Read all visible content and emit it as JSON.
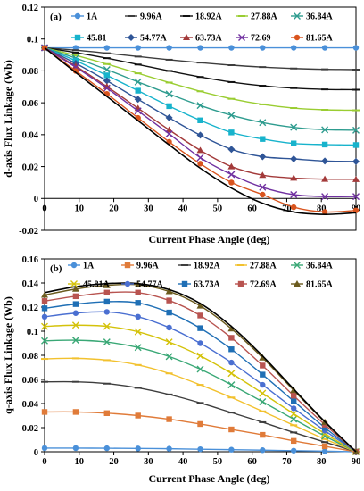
{
  "chart_data": [
    {
      "type": "line",
      "panel_label": "(a)",
      "xlabel": "Current Phase Angle (deg)",
      "ylabel": "d-axis Flux Linkage (Wb)",
      "xlim": [
        0,
        90
      ],
      "ylim": [
        -0.02,
        0.12
      ],
      "xticks": [
        "0",
        "10",
        "20",
        "30",
        "40",
        "50",
        "60",
        "70",
        "80",
        "90"
      ],
      "yticks": [
        "-0.02",
        "0",
        "0.02",
        "0.04",
        "0.06",
        "0.08",
        "0.1",
        "0.12"
      ],
      "grid": false,
      "legend_position": "top, inside plot area",
      "x": [
        0,
        9,
        18,
        27,
        36,
        45,
        54,
        63,
        72,
        81,
        90
      ],
      "series": [
        {
          "name": "1A",
          "color": "#4a90d9",
          "marker": "circle",
          "values": [
            0.0945,
            0.0945,
            0.0945,
            0.0945,
            0.0945,
            0.0945,
            0.0945,
            0.0945,
            0.0945,
            0.0945,
            0.0945
          ]
        },
        {
          "name": "9.96A",
          "color": "#3d3d3d",
          "marker": "dash",
          "values": [
            0.0945,
            0.093,
            0.0911,
            0.089,
            0.087,
            0.0852,
            0.0836,
            0.0824,
            0.0815,
            0.081,
            0.0808
          ]
        },
        {
          "name": "18.92A",
          "color": "#111111",
          "marker": "dash",
          "values": [
            0.0945,
            0.0915,
            0.088,
            0.084,
            0.08,
            0.0762,
            0.073,
            0.0707,
            0.0692,
            0.0684,
            0.0682
          ]
        },
        {
          "name": "27.88A",
          "color": "#9acd32",
          "marker": "dash",
          "values": [
            0.0945,
            0.0897,
            0.0843,
            0.0785,
            0.0727,
            0.0672,
            0.0625,
            0.059,
            0.0567,
            0.0556,
            0.0553
          ]
        },
        {
          "name": "36.84A",
          "color": "#2e9c8f",
          "marker": "x",
          "values": [
            0.0945,
            0.088,
            0.0808,
            0.0731,
            0.0655,
            0.0583,
            0.0522,
            0.0476,
            0.0446,
            0.0431,
            0.0428
          ]
        },
        {
          "name": "45.81",
          "color": "#17b3cc",
          "marker": "square",
          "values": [
            0.0945,
            0.0864,
            0.0772,
            0.0676,
            0.0579,
            0.049,
            0.0414,
            0.0373,
            0.0345,
            0.0338,
            0.0335
          ]
        },
        {
          "name": "54.77A",
          "color": "#2f5597",
          "marker": "diamond",
          "values": [
            0.0945,
            0.0847,
            0.0738,
            0.0622,
            0.0506,
            0.0397,
            0.0308,
            0.0262,
            0.0248,
            0.0235,
            0.0232
          ]
        },
        {
          "name": "63.73A",
          "color": "#a33a3a",
          "marker": "triangle",
          "values": [
            0.0945,
            0.083,
            0.0702,
            0.0566,
            0.043,
            0.0302,
            0.02,
            0.0146,
            0.0128,
            0.0121,
            0.012
          ]
        },
        {
          "name": "72.69",
          "color": "#7030a0",
          "marker": "x",
          "values": [
            0.0945,
            0.0823,
            0.0692,
            0.0549,
            0.0405,
            0.0256,
            0.015,
            0.007,
            0.0024,
            0.0012,
            0.0012
          ]
        },
        {
          "name": "81.65A",
          "color": "#d9541e",
          "marker": "circle",
          "values": [
            0.0945,
            0.08,
            0.0656,
            0.0505,
            0.0355,
            0.0218,
            0.01,
            0.0024,
            -0.0055,
            -0.0085,
            -0.0075
          ]
        },
        {
          "name": "",
          "color": "#000000",
          "marker": "none",
          "values": [
            0.0945,
            0.079,
            0.064,
            0.0488,
            0.0336,
            0.019,
            0.0065,
            -0.003,
            -0.0085,
            -0.01,
            -0.009
          ]
        }
      ]
    },
    {
      "type": "line",
      "panel_label": "(b)",
      "xlabel": "Current Phase Angle (deg)",
      "ylabel": "q-axis Flux Linkage (Wb)",
      "xlim": [
        0,
        90
      ],
      "ylim": [
        0,
        0.16
      ],
      "xticks": [
        "0",
        "10",
        "20",
        "30",
        "40",
        "50",
        "60",
        "70",
        "80",
        "90"
      ],
      "yticks": [
        "0",
        "0.02",
        "0.04",
        "0.06",
        "0.08",
        "0.1",
        "0.12",
        "0.14",
        "0.16"
      ],
      "grid": false,
      "legend_position": "top, inside plot area",
      "x": [
        0,
        9,
        18,
        27,
        36,
        45,
        54,
        63,
        72,
        81,
        90
      ],
      "series": [
        {
          "name": "1A",
          "color": "#4a90d9",
          "marker": "circle",
          "values": [
            0.003,
            0.003,
            0.0029,
            0.0027,
            0.0025,
            0.0021,
            0.0017,
            0.0013,
            0.0009,
            0.0005,
            0.0
          ]
        },
        {
          "name": "9.96A",
          "color": "#e07b39",
          "marker": "square",
          "values": [
            0.033,
            0.033,
            0.032,
            0.03,
            0.027,
            0.023,
            0.0185,
            0.014,
            0.009,
            0.0045,
            0.0
          ]
        },
        {
          "name": "18.92A",
          "color": "#3d3d3d",
          "marker": "dash",
          "values": [
            0.058,
            0.058,
            0.0565,
            0.053,
            0.0475,
            0.0405,
            0.0325,
            0.0245,
            0.016,
            0.008,
            0.0
          ]
        },
        {
          "name": "27.88A",
          "color": "#f2c12e",
          "marker": "dash",
          "values": [
            0.077,
            0.0775,
            0.076,
            0.072,
            0.065,
            0.0555,
            0.045,
            0.0335,
            0.022,
            0.0105,
            0.0
          ]
        },
        {
          "name": "36.84A",
          "color": "#3aa876",
          "marker": "x",
          "values": [
            0.092,
            0.0925,
            0.091,
            0.0865,
            0.079,
            0.0685,
            0.0555,
            0.0415,
            0.027,
            0.013,
            0.0
          ]
        },
        {
          "name": "45.81A",
          "color": "#d4c20a",
          "marker": "x",
          "values": [
            0.104,
            0.105,
            0.104,
            0.0995,
            0.091,
            0.0795,
            0.065,
            0.0485,
            0.0315,
            0.015,
            0.0
          ]
        },
        {
          "name": "54.77A",
          "color": "#4a6fd1",
          "marker": "circle",
          "values": [
            0.112,
            0.115,
            0.116,
            0.112,
            0.103,
            0.09,
            0.074,
            0.0555,
            0.036,
            0.0175,
            0.0
          ]
        },
        {
          "name": "63.73A",
          "color": "#1f6fb5",
          "marker": "square",
          "values": [
            0.119,
            0.1225,
            0.1245,
            0.1235,
            0.1155,
            0.1025,
            0.085,
            0.064,
            0.042,
            0.02,
            0.0
          ]
        },
        {
          "name": "72.69A",
          "color": "#b85450",
          "marker": "square",
          "values": [
            0.125,
            0.129,
            0.132,
            0.132,
            0.1255,
            0.113,
            0.0945,
            0.0715,
            0.0465,
            0.0225,
            0.0
          ]
        },
        {
          "name": "81.65A",
          "color": "#6b5b1e",
          "marker": "triangle",
          "values": [
            0.13,
            0.135,
            0.138,
            0.1385,
            0.133,
            0.121,
            0.102,
            0.078,
            0.051,
            0.0245,
            0.0
          ]
        },
        {
          "name": "",
          "color": "#000000",
          "marker": "none",
          "values": [
            0.132,
            0.137,
            0.1395,
            0.1395,
            0.1345,
            0.123,
            0.104,
            0.0795,
            0.052,
            0.025,
            0.0
          ]
        }
      ]
    }
  ]
}
